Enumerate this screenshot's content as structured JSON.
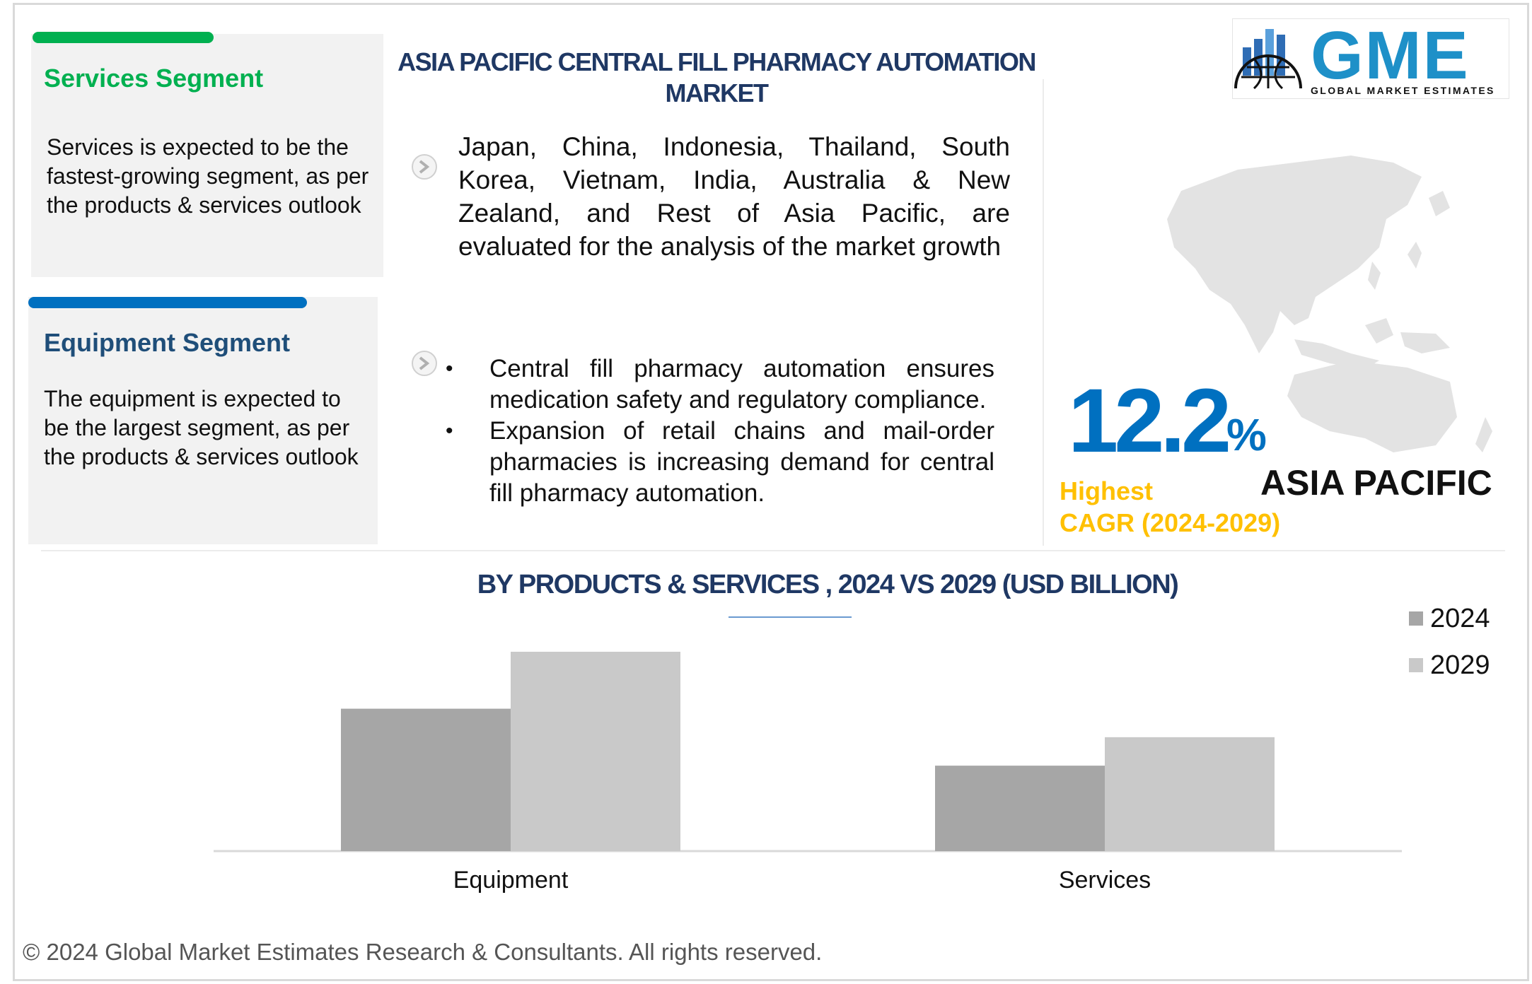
{
  "segments": {
    "services": {
      "title": "Services Segment",
      "text": "Services is expected to be the fastest-growing segment, as per the products & services outlook",
      "accent": "#00b050"
    },
    "equipment": {
      "title": "Equipment Segment",
      "text": "The equipment is expected to be the largest segment, as per the products & services outlook",
      "accent": "#0070c0",
      "title_color": "#1f4e79"
    }
  },
  "header": {
    "title": "ASIA PACIFIC CENTRAL FILL PHARMACY AUTOMATION MARKET"
  },
  "analysis": {
    "countries_text": "Japan, China, Indonesia, Thailand, South Korea, Vietnam, India, Australia & New Zealand, and Rest of Asia Pacific, are evaluated for the analysis of the market growth",
    "bullets": [
      "Central fill pharmacy automation ensures medication safety and regulatory compliance.",
      "Expansion of retail chains and mail-order pharmacies is increasing demand for central fill pharmacy automation."
    ]
  },
  "logo": {
    "text": "GME",
    "subtext": "GLOBAL MARKET ESTIMATES"
  },
  "highlight": {
    "cagr_value": "12.2",
    "cagr_unit": "%",
    "cagr_label_line1": "Highest",
    "cagr_label_line2": "CAGR (2024-2029)",
    "region": "ASIA PACIFIC"
  },
  "chart_data": {
    "type": "bar",
    "title": "BY PRODUCTS & SERVICES , 2024 VS 2029 (USD BILLION)",
    "categories": [
      "Equipment",
      "Services"
    ],
    "series": [
      {
        "name": "2024",
        "values": [
          0.5,
          0.3
        ],
        "color": "#a6a6a6"
      },
      {
        "name": "2029",
        "values": [
          0.7,
          0.4
        ],
        "color": "#c9c9c9"
      }
    ],
    "ylim": [
      0,
      0.7
    ],
    "grid": false,
    "legend": "top-right"
  },
  "footer": {
    "copyright": "© 2024 Global Market Estimates Research & Consultants. All rights reserved."
  }
}
